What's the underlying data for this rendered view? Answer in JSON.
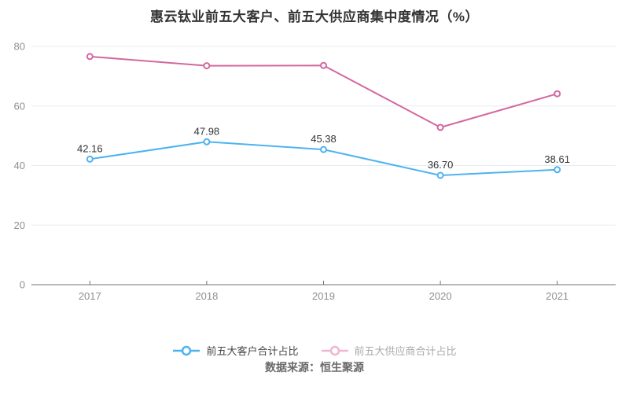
{
  "title": "惠云钛业前五大客户、前五大供应商集中度情况（%）",
  "source": "数据来源：恒生聚源",
  "legend": {
    "items": [
      {
        "label": "前五大客户合计占比",
        "state": "active"
      },
      {
        "label": "前五大供应商合计占比",
        "state": "inactive"
      }
    ]
  },
  "colors": {
    "customers_line": "#4db3f0",
    "suppliers_line": "#d4679f",
    "suppliers_legend_inactive": "#efb6d3",
    "grid_line": "#e6ebf2",
    "axis_line": "#6e7079",
    "axis_label": "#8f8f8f",
    "data_label": "#333333",
    "title_text": "#333333",
    "legend_active_text": "#464646",
    "legend_inactive_text": "#aaaaaa",
    "source_text": "#6b6b6b",
    "background": "#ffffff"
  },
  "chart_data": {
    "type": "line",
    "categories": [
      "2017",
      "2018",
      "2019",
      "2020",
      "2021"
    ],
    "series": [
      {
        "name": "前五大客户合计占比",
        "values": [
          42.16,
          47.98,
          45.38,
          36.7,
          38.61
        ],
        "point_labels": [
          "42.16",
          "47.98",
          "45.38",
          "36.70",
          "38.61"
        ],
        "show_labels": true,
        "color_key": "customers_line"
      },
      {
        "name": "前五大供应商合计占比",
        "values": [
          76.6,
          73.5,
          73.6,
          52.8,
          64.1
        ],
        "point_labels": [],
        "show_labels": false,
        "values_estimated_from_pixels": true,
        "color_key": "suppliers_line"
      }
    ],
    "xlabel": "",
    "ylabel": "",
    "ylim": [
      0,
      80
    ],
    "yticks": [
      0,
      20,
      40,
      60,
      80
    ],
    "grid": true,
    "legend_position": "bottom"
  }
}
